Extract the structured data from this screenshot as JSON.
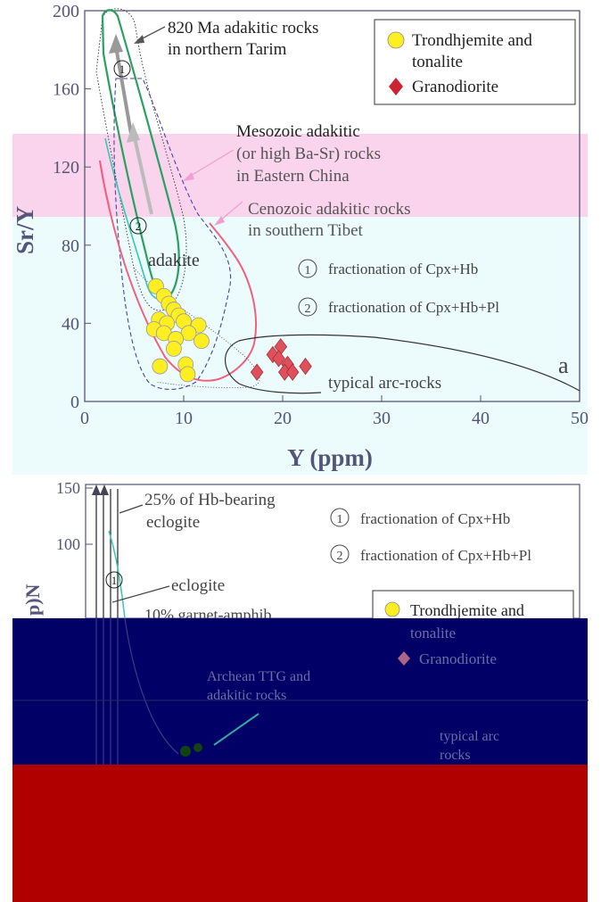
{
  "chart_data": [
    {
      "type": "scatter",
      "title": "",
      "xlabel": "Y (ppm)",
      "ylabel": "Sr/Y",
      "xlim": [
        0,
        50
      ],
      "ylim": [
        0,
        200
      ],
      "x_ticks": [
        "0",
        "10",
        "20",
        "30",
        "40",
        "50"
      ],
      "y_ticks": [
        "0",
        "40",
        "80",
        "120",
        "160",
        "200"
      ],
      "panel_label": "a",
      "legend": {
        "placement": "top-right",
        "entries": [
          {
            "label_line1": "Trondhjemite and",
            "label_line2": "tonalite",
            "marker": "circle",
            "color": "#ffee22"
          },
          {
            "label": "Granodiorite",
            "marker": "diamond",
            "color": "#e0505a"
          }
        ]
      },
      "series": [
        {
          "name": "Trondhjemite and tonalite",
          "marker": "circle",
          "color": "#ffee22",
          "points": [
            {
              "x": 7.2,
              "y": 59
            },
            {
              "x": 8.0,
              "y": 54
            },
            {
              "x": 8.5,
              "y": 50
            },
            {
              "x": 9.0,
              "y": 47
            },
            {
              "x": 9.5,
              "y": 44
            },
            {
              "x": 7.5,
              "y": 42
            },
            {
              "x": 8.3,
              "y": 40
            },
            {
              "x": 10.0,
              "y": 41
            },
            {
              "x": 11.5,
              "y": 39
            },
            {
              "x": 7.0,
              "y": 37
            },
            {
              "x": 8.0,
              "y": 35
            },
            {
              "x": 10.5,
              "y": 35
            },
            {
              "x": 9.2,
              "y": 32
            },
            {
              "x": 11.8,
              "y": 31
            },
            {
              "x": 9.0,
              "y": 27
            },
            {
              "x": 7.6,
              "y": 18
            },
            {
              "x": 10.2,
              "y": 19
            },
            {
              "x": 10.4,
              "y": 14
            }
          ]
        },
        {
          "name": "Granodiorite",
          "marker": "diamond",
          "color": "#e0505a",
          "points": [
            {
              "x": 19.8,
              "y": 28
            },
            {
              "x": 19.0,
              "y": 24
            },
            {
              "x": 19.6,
              "y": 22
            },
            {
              "x": 20.5,
              "y": 19
            },
            {
              "x": 22.3,
              "y": 18
            },
            {
              "x": 17.4,
              "y": 15
            },
            {
              "x": 20.2,
              "y": 15
            },
            {
              "x": 21.0,
              "y": 15
            }
          ]
        }
      ],
      "annotations": {
        "tarim_line1": "820 Ma adakitic rocks",
        "tarim_line2": "in northern Tarim",
        "mesozoic_line1": "Mesozoic adakitic",
        "mesozoic_line2": "(or high Ba-Sr) rocks",
        "mesozoic_line3": "in Eastern China",
        "cenozoic_line1": "Cenozoic adakitic rocks",
        "cenozoic_line2": "in southern Tibet",
        "adakite": "adakite",
        "arc": "typical arc-rocks",
        "num1": "1",
        "num2": "2",
        "fract1_num": "1",
        "fract1": "fractionation of Cpx+Hb",
        "fract2_num": "2",
        "fract2": "fractionation of Cpx+Hb+Pl"
      },
      "colors": {
        "overlay_pink": "#f9d4ec",
        "overlay_cyan": "#ecfbfc",
        "axis_text": "#555577",
        "red_curve": "#f06080",
        "green_curve": "#2aa060",
        "blue_dash": "#4444aa"
      }
    },
    {
      "type": "line",
      "title": "",
      "y_ticks": [
        "100",
        "150"
      ],
      "ylabel_partial": "p)N",
      "annotations": {
        "hb_eclogite_line1": "25% of Hb-bearing",
        "hb_eclogite_line2": "eclogite",
        "eclogite": "eclogite",
        "garnet": "10% garnet-amphib",
        "num1": "1",
        "fract1_num": "1",
        "fract1": "fractionation of Cpx+Hb",
        "fract2_num": "2",
        "fract2": "fractionation of Cpx+Hb+Pl",
        "legend_partial1": "Trondhjemite and",
        "legend_partial2": "tonalite",
        "legend_partial3": "Granodiorite",
        "archean": "Archean TTG and",
        "archean2": "adakitic rocks",
        "arc": "typical arc",
        "arc2": "rocks"
      },
      "overlays": {
        "navy": "#000066",
        "red": "#b00000"
      }
    }
  ]
}
